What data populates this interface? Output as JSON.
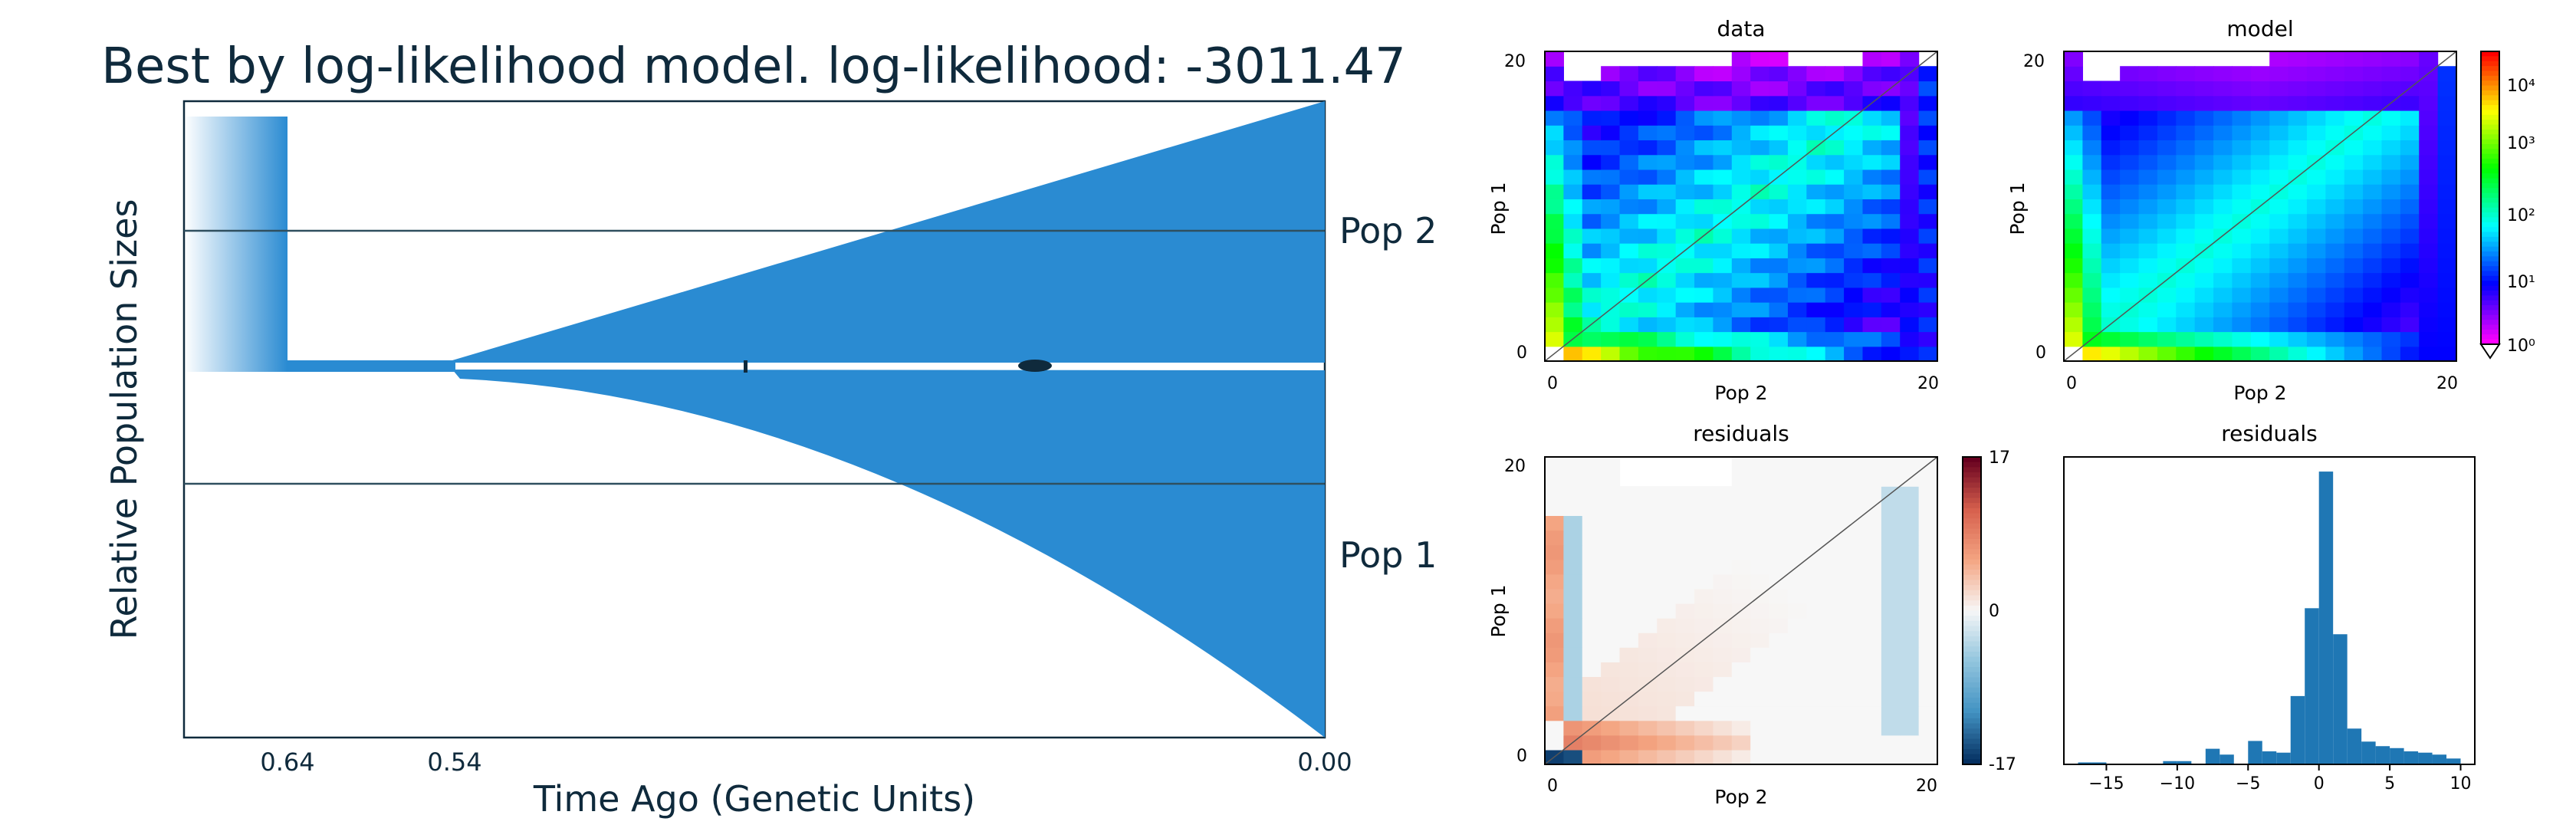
{
  "chart_data": [
    {
      "type": "area",
      "subtype": "population-size-history",
      "title": "Best by log-likelihood model. log-likelihood: -3011.47",
      "xlabel": "Time Ago (Genetic Units)",
      "ylabel": "Relative Population Sizes",
      "x_ticks": [
        "0.64",
        "0.54",
        "0.00"
      ],
      "x_tick_values": [
        0.64,
        0.54,
        0.0
      ],
      "populations": [
        "Pop 2",
        "Pop 1"
      ],
      "events": [
        {
          "time": 0.64,
          "what": "ancestral size change"
        },
        {
          "time": 0.54,
          "what": "split"
        }
      ],
      "fill_color": "#2a8bd2",
      "text_color": "#0f2a3c"
    },
    {
      "type": "heatmap",
      "title": "data",
      "xlabel": "Pop 2",
      "ylabel": "Pop 1",
      "x_ticks": [
        "0",
        "20"
      ],
      "y_ticks": [
        "0",
        "20"
      ],
      "log_color_scale": true
    },
    {
      "type": "heatmap",
      "title": "model",
      "xlabel": "Pop 2",
      "ylabel": "Pop 1",
      "x_ticks": [
        "0",
        "20"
      ],
      "y_ticks": [
        "0",
        "20"
      ],
      "colorbar_ticks": [
        "10⁰",
        "10¹",
        "10²",
        "10³",
        "10⁴"
      ],
      "log_color_scale": true
    },
    {
      "type": "heatmap",
      "title": "residuals",
      "xlabel": "Pop 2",
      "ylabel": "Pop 1",
      "x_ticks": [
        "0",
        "20"
      ],
      "y_ticks": [
        "0",
        "20"
      ],
      "colorbar_ticks": [
        "17",
        "0",
        "-17"
      ],
      "colorbar_range": [
        -17,
        17
      ]
    },
    {
      "type": "bar",
      "subtype": "histogram",
      "title": "residuals",
      "x_ticks": [
        "−15",
        "−10",
        "−5",
        "0",
        "5",
        "10"
      ],
      "xlim": [
        -18,
        11
      ],
      "bin_width": 1,
      "bin_starts": [
        -17,
        -16,
        -15,
        -14,
        -13,
        -12,
        -11,
        -10,
        -9,
        -8,
        -7,
        -6,
        -5,
        -4,
        -3,
        -2,
        -1,
        0,
        1,
        2,
        3,
        4,
        5,
        6,
        7,
        8,
        9
      ],
      "values": [
        0.3,
        0.3,
        0,
        0,
        0,
        0,
        0.5,
        0.5,
        0,
        2.4,
        1.5,
        0,
        3.6,
        2.0,
        1.8,
        10.5,
        24.0,
        45.0,
        20.0,
        5.5,
        3.5,
        2.8,
        2.5,
        2.0,
        1.8,
        1.5,
        0.9
      ],
      "color": "#1f77b4"
    }
  ]
}
